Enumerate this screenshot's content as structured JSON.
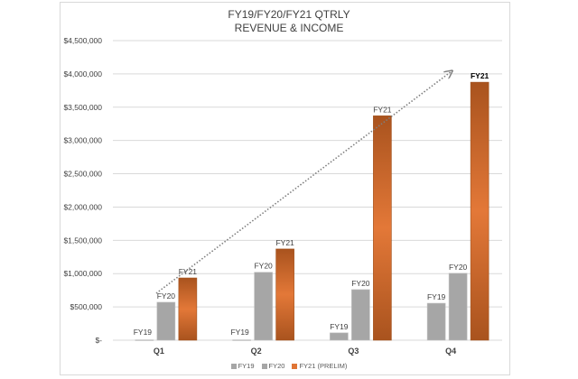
{
  "chart_data": {
    "type": "bar",
    "title": "FY19/FY20/FY21 QTRLY\nREVENUE & INCOME",
    "title_lines": [
      "FY19/FY20/FY21 QTRLY",
      "REVENUE & INCOME"
    ],
    "xlabel": "",
    "ylabel": "",
    "categories": [
      "Q1",
      "Q2",
      "Q3",
      "Q4"
    ],
    "series": [
      {
        "name": "FY19",
        "color": "#A6A6A6",
        "values": [
          5000,
          5000,
          110000,
          555000
        ],
        "data_label": "FY19"
      },
      {
        "name": "FY20",
        "color": "#A6A6A6",
        "values": [
          570000,
          1020000,
          760000,
          1005000
        ],
        "data_label": "FY20"
      },
      {
        "name": "FY21 (PRELIM)",
        "color": "#E07535",
        "values": [
          935000,
          1370000,
          3370000,
          3875000
        ],
        "data_label": "FY21"
      }
    ],
    "ylim": [
      0,
      4500000
    ],
    "yticks": [
      0,
      500000,
      1000000,
      1500000,
      2000000,
      2500000,
      3000000,
      3500000,
      4000000,
      4500000
    ],
    "ytick_labels": [
      "$-",
      "$500,000",
      "$1,000,000",
      "$1,500,000",
      "$2,000,000",
      "$2,500,000",
      "$3,000,000",
      "$3,500,000",
      "$4,000,000",
      "$4,500,000"
    ],
    "grid": true,
    "legend_position": "bottom",
    "annotations": [
      {
        "type": "dotted-arrow-trendline",
        "from": "Q1 FY21",
        "to": "above Q4 FY21",
        "color": "#7F7F7F"
      }
    ]
  },
  "legend": {
    "items": [
      {
        "label": "FY19",
        "color": "#A6A6A6"
      },
      {
        "label": "FY20",
        "color": "#A6A6A6"
      },
      {
        "label": "FY21 (PRELIM)",
        "color": "#E07535"
      }
    ]
  }
}
